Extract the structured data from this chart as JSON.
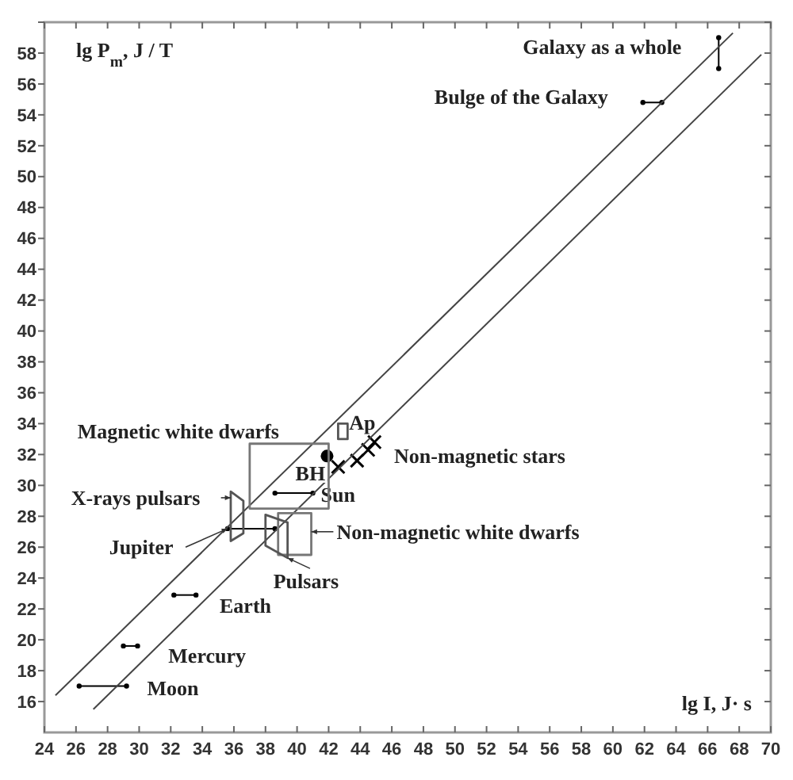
{
  "chart_data": {
    "type": "line",
    "xlabel": "lg I, J· s",
    "ylabel": "lg P$_{m}$, J / T",
    "xlim": [
      24,
      70
    ],
    "ylim": [
      14,
      60
    ],
    "xticks": [
      24,
      26,
      28,
      30,
      32,
      34,
      36,
      38,
      40,
      42,
      44,
      46,
      48,
      50,
      52,
      54,
      56,
      58,
      60,
      62,
      64,
      66,
      68,
      70
    ],
    "yticks": [
      16,
      18,
      20,
      22,
      24,
      26,
      28,
      30,
      32,
      34,
      36,
      38,
      40,
      42,
      44,
      46,
      48,
      50,
      52,
      54,
      56,
      58,
      {
        "value": 60,
        "label": null
      }
    ],
    "grid": false,
    "series": [
      {
        "name": "Moon",
        "color": "#000000",
        "marker": "circle",
        "x": [
          26.2,
          29.2
        ],
        "values": [
          17.0,
          17.0
        ]
      },
      {
        "name": "Mercury",
        "color": "#000000",
        "marker": "circle",
        "x": [
          29.0,
          29.9
        ],
        "values": [
          19.6,
          19.6
        ]
      },
      {
        "name": "Earth",
        "color": "#000000",
        "marker": "circle",
        "x": [
          32.2,
          33.6
        ],
        "values": [
          22.9,
          22.9
        ]
      },
      {
        "name": "Jupiter",
        "color": "#000000",
        "marker": "circle",
        "x": [
          35.6,
          38.6
        ],
        "values": [
          27.2,
          27.2
        ]
      },
      {
        "name": "Sun",
        "color": "#000000",
        "marker": "circle",
        "x": [
          38.6,
          41.0
        ],
        "values": [
          29.5,
          29.5
        ]
      },
      {
        "name": "Bulge of the Galaxy",
        "color": "#000000",
        "marker": "circle",
        "x": [
          61.9,
          63.1
        ],
        "values": [
          54.8,
          54.8
        ]
      },
      {
        "name": "Galaxy as a whole",
        "color": "#000000",
        "marker": "circle",
        "x": [
          66.7,
          66.7
        ],
        "values": [
          57.0,
          59.0
        ]
      },
      {
        "name": "BH",
        "type": "scatter",
        "color": "#000000",
        "marker": "circle",
        "x": [
          41.9
        ],
        "values": [
          31.9
        ]
      },
      {
        "name": "Non-magnetic stars",
        "type": "scatter",
        "color": "#000000",
        "marker": "cross",
        "x": [
          42.6,
          43.8,
          44.5,
          44.9
        ],
        "values": [
          31.2,
          31.6,
          32.3,
          32.8
        ]
      },
      {
        "color": "#444444",
        "marker": "none",
        "x": [
          24.7,
          67.6
        ],
        "values": [
          16.4,
          59.3
        ]
      },
      {
        "color": "#444444",
        "marker": "none",
        "x": [
          27.1,
          69.4
        ],
        "values": [
          15.5,
          57.9
        ]
      }
    ],
    "annotations": [
      "Magnetic white dwarfs",
      "Ap",
      "Non-magnetic white dwarfs",
      "Pulsars",
      "X-rays pulsars"
    ]
  }
}
